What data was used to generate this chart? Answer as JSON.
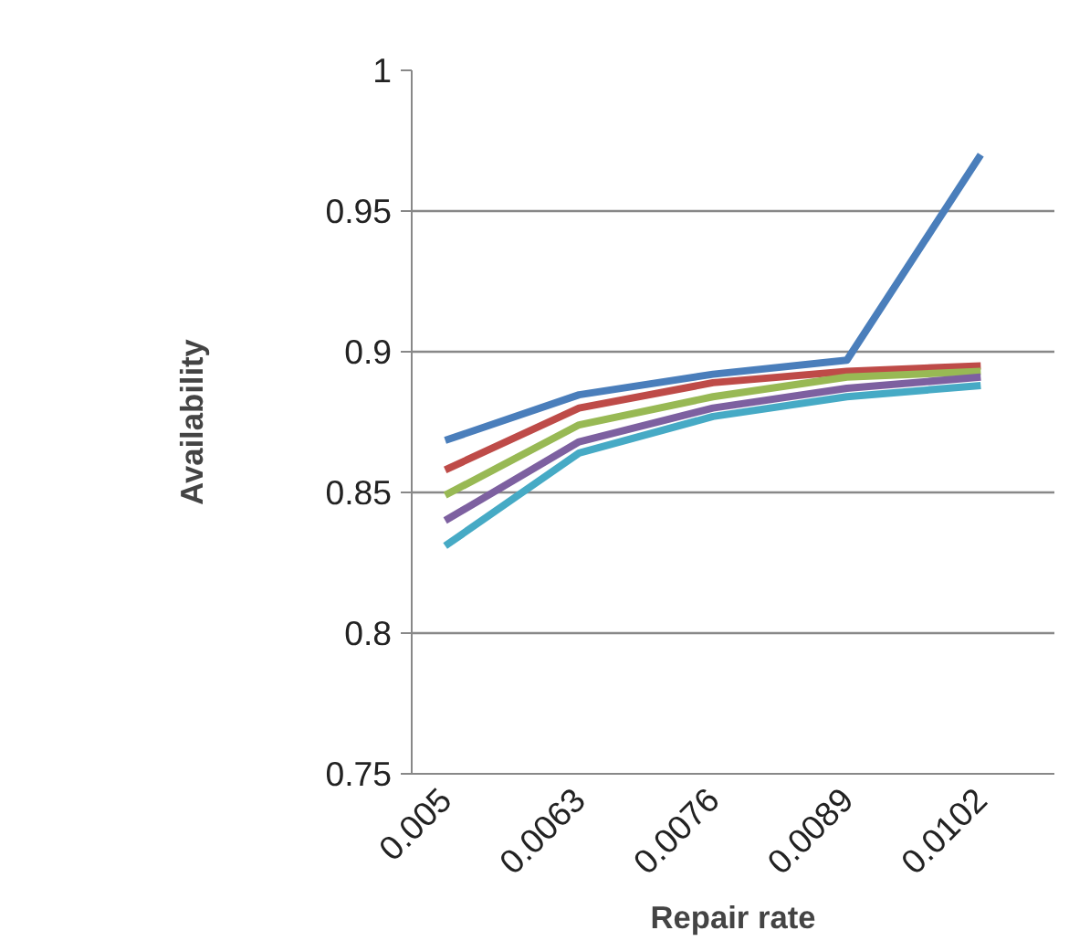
{
  "chart_data": {
    "type": "line",
    "xlabel": "Repair rate",
    "ylabel": "Availability",
    "categories": [
      "0.005",
      "0.0063",
      "0.0076",
      "0.0089",
      "0.0102"
    ],
    "series": [
      {
        "color": "#4a7ebb",
        "values": [
          0.8685,
          0.8847,
          0.892,
          0.897,
          0.97
        ]
      },
      {
        "color": "#be4b48",
        "values": [
          0.858,
          0.88,
          0.889,
          0.893,
          0.895
        ]
      },
      {
        "color": "#98b954",
        "values": [
          0.849,
          0.874,
          0.884,
          0.891,
          0.893
        ]
      },
      {
        "color": "#7d60a0",
        "values": [
          0.84,
          0.868,
          0.88,
          0.887,
          0.891
        ]
      },
      {
        "color": "#46aac5",
        "values": [
          0.831,
          0.864,
          0.877,
          0.884,
          0.888
        ]
      }
    ],
    "ylim": [
      0.75,
      1
    ],
    "yticks": [
      0.75,
      0.8,
      0.85,
      0.9,
      0.95,
      1
    ],
    "grid": "y",
    "marker": "none",
    "line_style": "solid"
  }
}
